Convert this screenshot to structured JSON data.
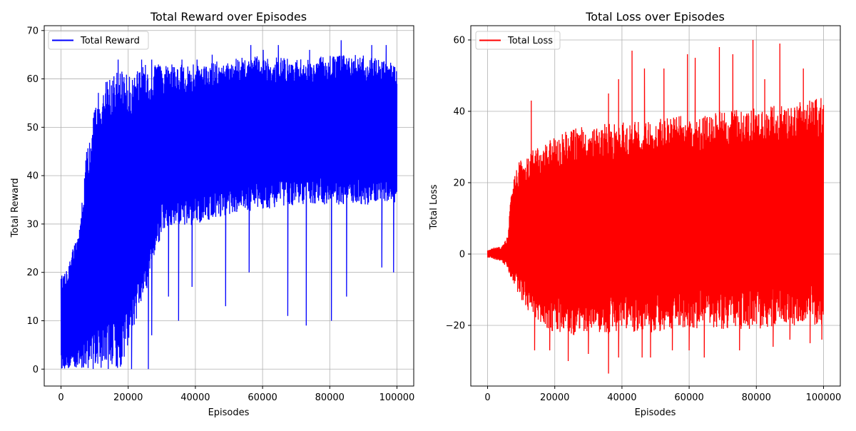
{
  "chart_data": [
    {
      "type": "line",
      "title": "Total Reward over Episodes",
      "xlabel": "Episodes",
      "ylabel": "Total Reward",
      "xlim": [
        -5000,
        105000
      ],
      "ylim": [
        -3.5,
        71
      ],
      "xticks": [
        0,
        20000,
        40000,
        60000,
        80000,
        100000
      ],
      "yticks": [
        0,
        10,
        20,
        30,
        40,
        50,
        60,
        70
      ],
      "grid": true,
      "legend": "top-left",
      "color": "#0000ff",
      "series": [
        {
          "name": "Total Reward",
          "envelope": {
            "x": [
              0,
              2000,
              4000,
              6000,
              7000,
              8000,
              9000,
              10000,
              11000,
              12000,
              14000,
              16000,
              18000,
              20000,
              25000,
              30000,
              40000,
              50000,
              60000,
              70000,
              80000,
              90000,
              100000
            ],
            "upper": [
              19,
              22,
              26,
              32,
              42,
              47,
              52,
              54,
              57,
              60,
              60,
              61,
              62,
              61,
              63,
              63,
              63,
              64,
              65,
              64,
              65,
              65,
              63
            ],
            "lower": [
              0,
              0,
              0,
              0,
              0,
              0,
              0,
              0,
              0,
              0,
              0,
              0,
              0,
              5,
              15,
              28,
              30,
              32,
              33,
              34,
              34,
              34,
              34
            ]
          },
          "spikes_up": [
            [
              17000,
              64
            ],
            [
              24000,
              64
            ],
            [
              27000,
              64
            ],
            [
              36000,
              64
            ],
            [
              40500,
              64
            ],
            [
              45000,
              65
            ],
            [
              56500,
              67
            ],
            [
              60200,
              66
            ],
            [
              64700,
              67
            ],
            [
              74000,
              66
            ],
            [
              83400,
              68
            ],
            [
              92500,
              67
            ],
            [
              96800,
              67
            ]
          ],
          "spikes_down": [
            [
              21000,
              0
            ],
            [
              26000,
              0
            ],
            [
              27000,
              7
            ],
            [
              32000,
              15
            ],
            [
              35000,
              10
            ],
            [
              39000,
              17
            ],
            [
              49000,
              13
            ],
            [
              56000,
              20
            ],
            [
              67500,
              11
            ],
            [
              73000,
              9
            ],
            [
              80500,
              10
            ],
            [
              85000,
              15
            ],
            [
              95500,
              21
            ],
            [
              99000,
              20
            ]
          ]
        }
      ]
    },
    {
      "type": "line",
      "title": "Total Loss over Episodes",
      "xlabel": "Episodes",
      "ylabel": "Total Loss",
      "xlim": [
        -5000,
        105000
      ],
      "ylim": [
        -37,
        64
      ],
      "xticks": [
        0,
        20000,
        40000,
        60000,
        80000,
        100000
      ],
      "yticks": [
        -20,
        0,
        20,
        40,
        60
      ],
      "grid": true,
      "legend": "top-left",
      "color": "#ff0000",
      "series": [
        {
          "name": "Total Loss",
          "envelope": {
            "x": [
              0,
              1000,
              2000,
              4000,
              6000,
              7000,
              8000,
              9000,
              10000,
              12000,
              14000,
              16000,
              20000,
              25000,
              30000,
              40000,
              50000,
              60000,
              70000,
              80000,
              90000,
              100000
            ],
            "upper": [
              1,
              1.5,
              2,
              2,
              5,
              17,
              22,
              25,
              27,
              28,
              30,
              30,
              33,
              35,
              36,
              37,
              38,
              39,
              40,
              41,
              42,
              44
            ],
            "lower": [
              -1,
              -1,
              -1.5,
              -2,
              -4,
              -7,
              -9,
              -11,
              -13,
              -16,
              -18,
              -20,
              -22,
              -23,
              -23,
              -22,
              -22,
              -21,
              -21,
              -21,
              -20,
              -20
            ]
          },
          "spikes_up": [
            [
              13000,
              43
            ],
            [
              36000,
              45
            ],
            [
              39000,
              49
            ],
            [
              43000,
              57
            ],
            [
              46700,
              52
            ],
            [
              52500,
              52
            ],
            [
              59500,
              56
            ],
            [
              61800,
              55
            ],
            [
              69000,
              58
            ],
            [
              73000,
              56
            ],
            [
              79000,
              60
            ],
            [
              82500,
              49
            ],
            [
              87000,
              59
            ],
            [
              94000,
              52
            ]
          ],
          "spikes_down": [
            [
              14000,
              -27
            ],
            [
              18500,
              -27
            ],
            [
              24000,
              -30
            ],
            [
              30000,
              -28
            ],
            [
              36000,
              -33.5
            ],
            [
              39000,
              -29
            ],
            [
              46000,
              -29
            ],
            [
              48500,
              -29
            ],
            [
              55000,
              -27
            ],
            [
              60000,
              -27
            ],
            [
              64500,
              -29
            ],
            [
              75000,
              -27
            ],
            [
              85000,
              -26
            ],
            [
              90000,
              -24
            ],
            [
              96000,
              -25
            ],
            [
              99500,
              -24
            ]
          ]
        }
      ]
    }
  ]
}
